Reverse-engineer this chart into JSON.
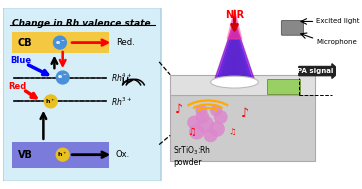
{
  "title": "Change in Rh valence state",
  "left_bg": "#d6eef8",
  "cb_color": "#f5c842",
  "vb_color": "#7b7bdb",
  "cb_label": "CB",
  "vb_label": "VB",
  "red_label": "Red.",
  "ox_label": "Ox.",
  "blue_label": "Blue",
  "red_light_label": "Red",
  "nir_label": "NIR",
  "excited_label": "Excited light",
  "micro_label": "Microphone",
  "pa_label": "PA signal",
  "srtio_label": "SrTiO$_3$:Rh\npowder",
  "fig_bg": "#ffffff"
}
